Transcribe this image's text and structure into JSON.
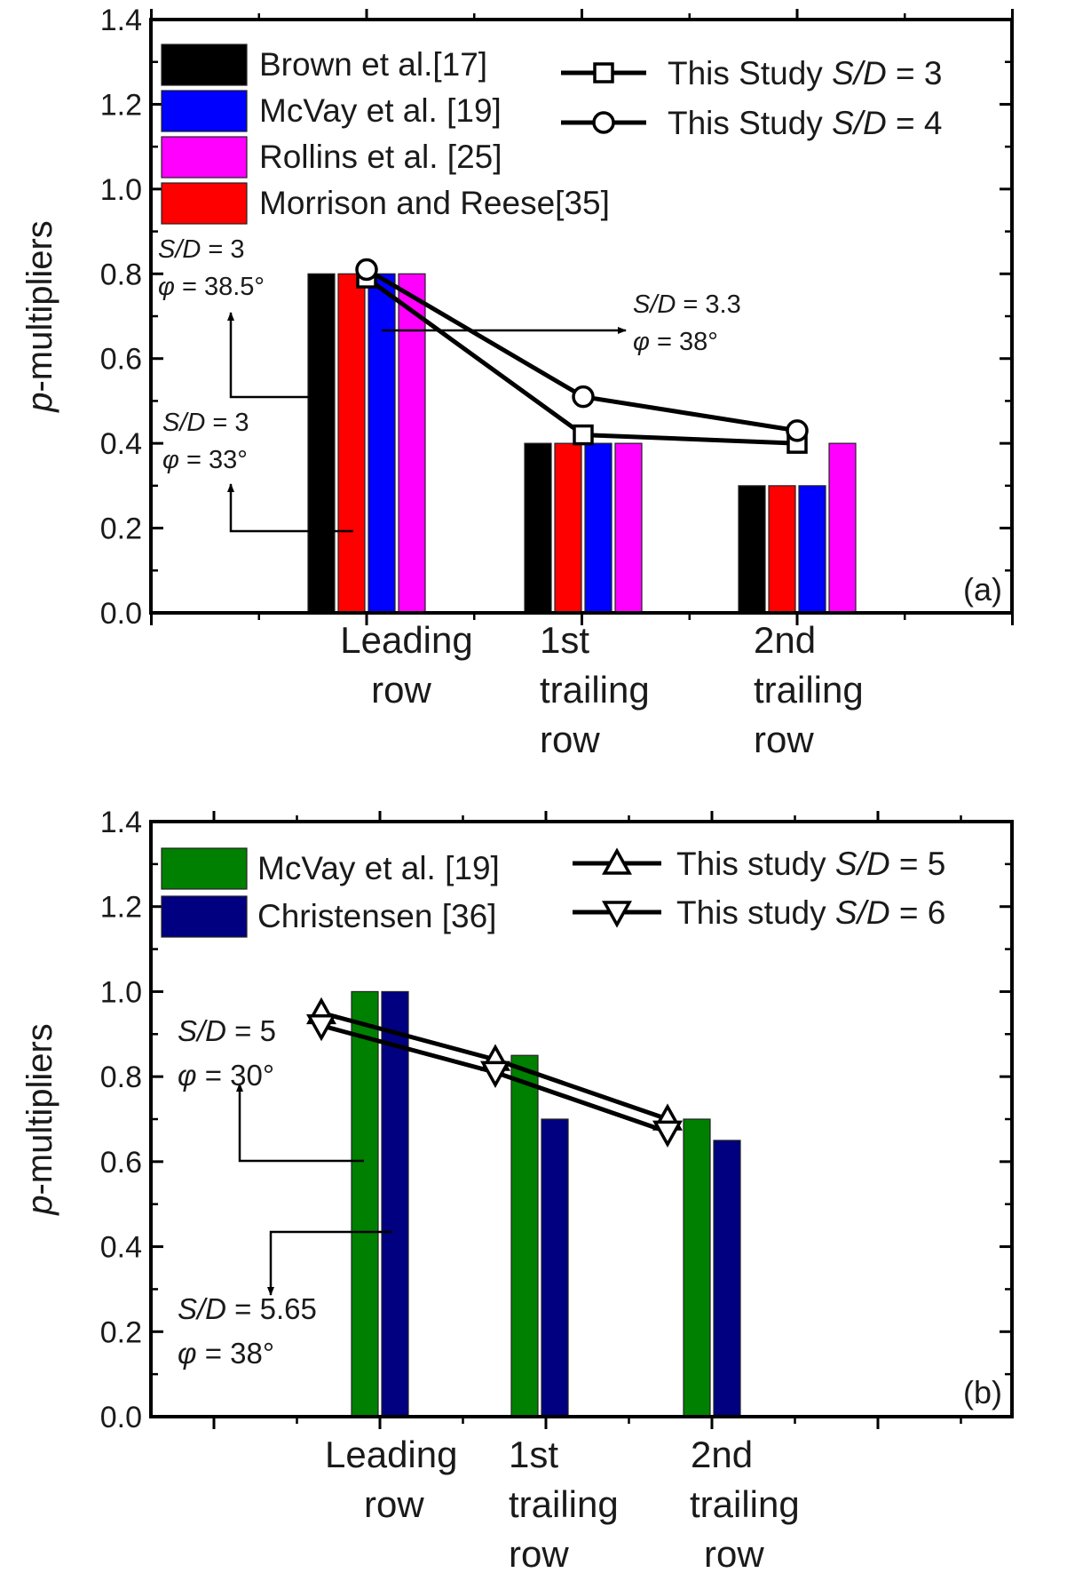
{
  "chart_data": [
    {
      "type": "bar",
      "panel_label": "(a)",
      "title": "",
      "xlabel": "",
      "ylabel_italic": "p",
      "ylabel_rest": "-multipliers",
      "ylim": [
        0,
        1.4
      ],
      "yticks": [
        "0.0",
        "0.2",
        "0.4",
        "0.6",
        "0.8",
        "1.0",
        "1.2",
        "1.4"
      ],
      "categories": [
        [
          "Leading",
          "row"
        ],
        [
          "1st",
          "trailing",
          "row"
        ],
        [
          "2nd",
          "trailing",
          "row"
        ]
      ],
      "series": [
        {
          "name": "Brown et al.[17]",
          "color": "#000000",
          "values": [
            0.8,
            0.4,
            0.3
          ]
        },
        {
          "name": "Morrison and Reese[35]",
          "color": "#ff0000",
          "values": [
            0.8,
            0.4,
            0.3
          ]
        },
        {
          "name": "McVay et al. [19]",
          "color": "#0000ff",
          "values": [
            0.8,
            0.4,
            0.3
          ]
        },
        {
          "name": "Rollins et al. [25]",
          "color": "#ff00ff",
          "values": [
            0.8,
            0.4,
            0.4
          ]
        }
      ],
      "legend_order": [
        0,
        2,
        3,
        1
      ],
      "lines": [
        {
          "name_prefix": "This Study ",
          "name_italic": "S/D",
          "name_suffix": " = 3",
          "marker": "square",
          "values": [
            0.79,
            0.42,
            0.4
          ]
        },
        {
          "name_prefix": "This Study ",
          "name_italic": "S/D",
          "name_suffix": " = 4",
          "marker": "circle",
          "values": [
            0.81,
            0.51,
            0.43
          ]
        }
      ],
      "annotations": [
        {
          "line1_italic": "S/D",
          "line1_rest": " = 3",
          "line2_italic": "φ",
          "line2_rest": " = 38.5°"
        },
        {
          "line1_italic": "S/D",
          "line1_rest": " = 3.3",
          "line2_italic": "φ",
          "line2_rest": " = 38°"
        },
        {
          "line1_italic": "S/D",
          "line1_rest": " = 3",
          "line2_italic": "φ",
          "line2_rest": " = 33°"
        }
      ]
    },
    {
      "type": "bar",
      "panel_label": "(b)",
      "title": "",
      "xlabel": "",
      "ylabel_italic": "p",
      "ylabel_rest": "-multipliers",
      "ylim": [
        0,
        1.4
      ],
      "yticks": [
        "0.0",
        "0.2",
        "0.4",
        "0.6",
        "0.8",
        "1.0",
        "1.2",
        "1.4"
      ],
      "categories": [
        [
          "Leading",
          "row"
        ],
        [
          "1st",
          "trailing",
          "row"
        ],
        [
          "2nd",
          "trailing",
          "row"
        ]
      ],
      "series": [
        {
          "name": "McVay et al. [19]",
          "color": "#008000",
          "values": [
            1.0,
            0.85,
            0.7
          ]
        },
        {
          "name": "Christensen  [36]",
          "color": "#000080",
          "values": [
            1.0,
            0.7,
            0.65
          ]
        }
      ],
      "legend_order": [
        0,
        1
      ],
      "lines": [
        {
          "name_prefix": "This study ",
          "name_italic": "S/D",
          "name_suffix": " = 5",
          "marker": "triangle-up",
          "values": [
            0.95,
            0.84,
            0.7
          ]
        },
        {
          "name_prefix": "This study ",
          "name_italic": "S/D",
          "name_suffix": " = 6",
          "marker": "triangle-down",
          "values": [
            0.92,
            0.81,
            0.67
          ]
        }
      ],
      "annotations": [
        {
          "line1_italic": "S/D",
          "line1_rest": " = 5",
          "line2_italic": "φ",
          "line2_rest": " = 30°"
        },
        {
          "line1_italic": "S/D",
          "line1_rest": " = 5.65",
          "line2_italic": "φ",
          "line2_rest": " = 38°"
        }
      ]
    }
  ]
}
